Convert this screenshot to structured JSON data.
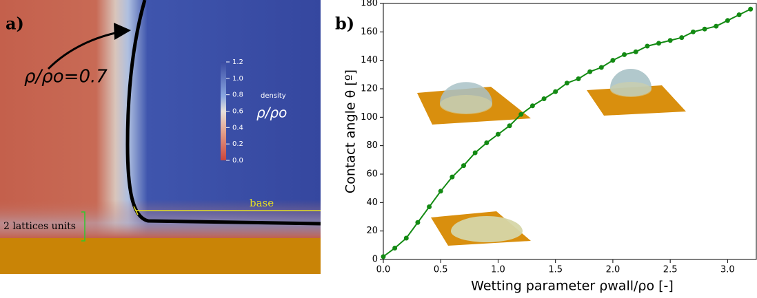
{
  "panel_a": {
    "label": "a)",
    "contour_label": "ρ/ρo=0.7",
    "colorbar_title": "density",
    "colorbar_symbol": "ρ/ρo",
    "colorbar_ticks": [
      1.2,
      {
        "value": 1,
        "label": "1.0"
      },
      0.8,
      0.6,
      0.4,
      0.2,
      {
        "value": 0,
        "label": "0.0"
      }
    ],
    "colorbar_lim": [
      0,
      1.2
    ],
    "base_label": "base",
    "scale_label": "2 lattices units"
  },
  "chart_data": {
    "type": "line",
    "panel_label": "b)",
    "xlabel": "Wetting parameter ρwall/ρo [-]",
    "ylabel": "Contact angle θ [º]",
    "x": [
      0,
      0.1,
      0.2,
      0.3,
      0.4,
      0.5,
      0.6,
      0.7,
      0.8,
      0.9,
      1.0,
      1.1,
      1.2,
      1.3,
      1.4,
      1.5,
      1.6,
      1.7,
      1.8,
      1.9,
      2.0,
      2.1,
      2.2,
      2.3,
      2.4,
      2.5,
      2.6,
      2.7,
      2.8,
      2.9,
      3.0,
      3.1,
      3.2
    ],
    "series": [
      {
        "color": "#138a13",
        "values": [
          2,
          8,
          15,
          26,
          37,
          48,
          58,
          66,
          75,
          82,
          88,
          94,
          102,
          108,
          113,
          118,
          124,
          127,
          132,
          135,
          140,
          144,
          146,
          150,
          152,
          154,
          156,
          160,
          162,
          164,
          168,
          172,
          176
        ]
      }
    ],
    "xlim": [
      0,
      3.25
    ],
    "ylim": [
      0,
      180
    ],
    "xticks": [
      {
        "value": 0,
        "label": "0.0"
      },
      0.5,
      {
        "value": 1,
        "label": "1.0"
      },
      1.5,
      {
        "value": 2,
        "label": "2.0"
      },
      2.5,
      {
        "value": 3,
        "label": "3.0"
      }
    ],
    "yticks": [
      0,
      20,
      40,
      60,
      80,
      100,
      120,
      140,
      160,
      180
    ]
  }
}
